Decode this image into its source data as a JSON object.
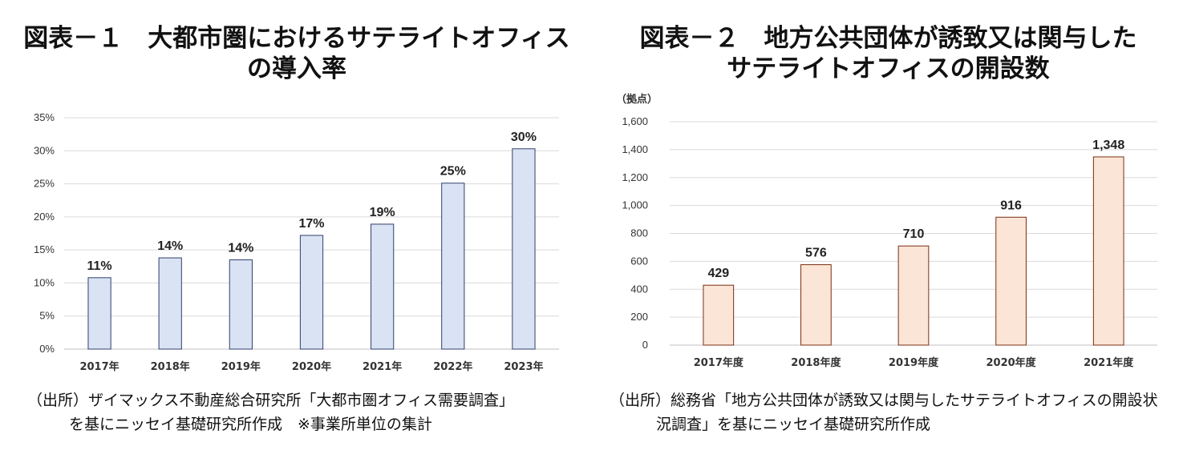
{
  "charts": [
    {
      "title_line1": "図表－１　大都市圏におけるサテライトオフィス",
      "title_line2": "の導入率",
      "source_line1": "（出所）ザイマックス不動産総合研究所「大都市圏オフィス需要調査」",
      "source_line2": "を基にニッセイ基礎研究所作成　※事業所単位の集計"
    },
    {
      "title_line1": "図表－２　地方公共団体が誘致又は関与した",
      "title_line2": "サテライトオフィスの開設数",
      "source_line1": "（出所）総務省「地方公共団体が誘致又は関与したサテライトオフィスの開設状",
      "source_line2": "況調査」を基にニッセイ基礎研究所作成"
    }
  ],
  "chart_data": [
    {
      "type": "bar",
      "title": "図表－１　大都市圏におけるサテライトオフィスの導入率",
      "categories": [
        "2017年",
        "2018年",
        "2019年",
        "2020年",
        "2021年",
        "2022年",
        "2023年"
      ],
      "values": [
        10.8,
        13.8,
        13.5,
        17.2,
        18.9,
        25.1,
        30.3
      ],
      "data_labels": [
        "11%",
        "14%",
        "14%",
        "17%",
        "19%",
        "25%",
        "30%"
      ],
      "yticks": [
        "0%",
        "5%",
        "10%",
        "15%",
        "20%",
        "25%",
        "30%",
        "35%"
      ],
      "ylim": [
        0,
        35
      ],
      "ystep": 5,
      "xlabel": "",
      "ylabel": "",
      "unit_label": "",
      "grid": true,
      "legend": "none",
      "bar_fill": "#dae3f3",
      "bar_stroke": "#2f3f6f"
    },
    {
      "type": "bar",
      "title": "図表－２　地方公共団体が誘致又は関与したサテライトオフィスの開設数",
      "categories": [
        "2017年度",
        "2018年度",
        "2019年度",
        "2020年度",
        "2021年度"
      ],
      "values": [
        429,
        576,
        710,
        916,
        1348
      ],
      "data_labels": [
        "429",
        "576",
        "710",
        "916",
        "1,348"
      ],
      "yticks": [
        "0",
        "200",
        "400",
        "600",
        "800",
        "1,000",
        "1,200",
        "1,400",
        "1,600"
      ],
      "ylim": [
        0,
        1600
      ],
      "ystep": 200,
      "xlabel": "",
      "ylabel": "",
      "unit_label": "（拠点）",
      "grid": true,
      "legend": "none",
      "bar_fill": "#fbe5d6",
      "bar_stroke": "#7a2e12"
    }
  ]
}
